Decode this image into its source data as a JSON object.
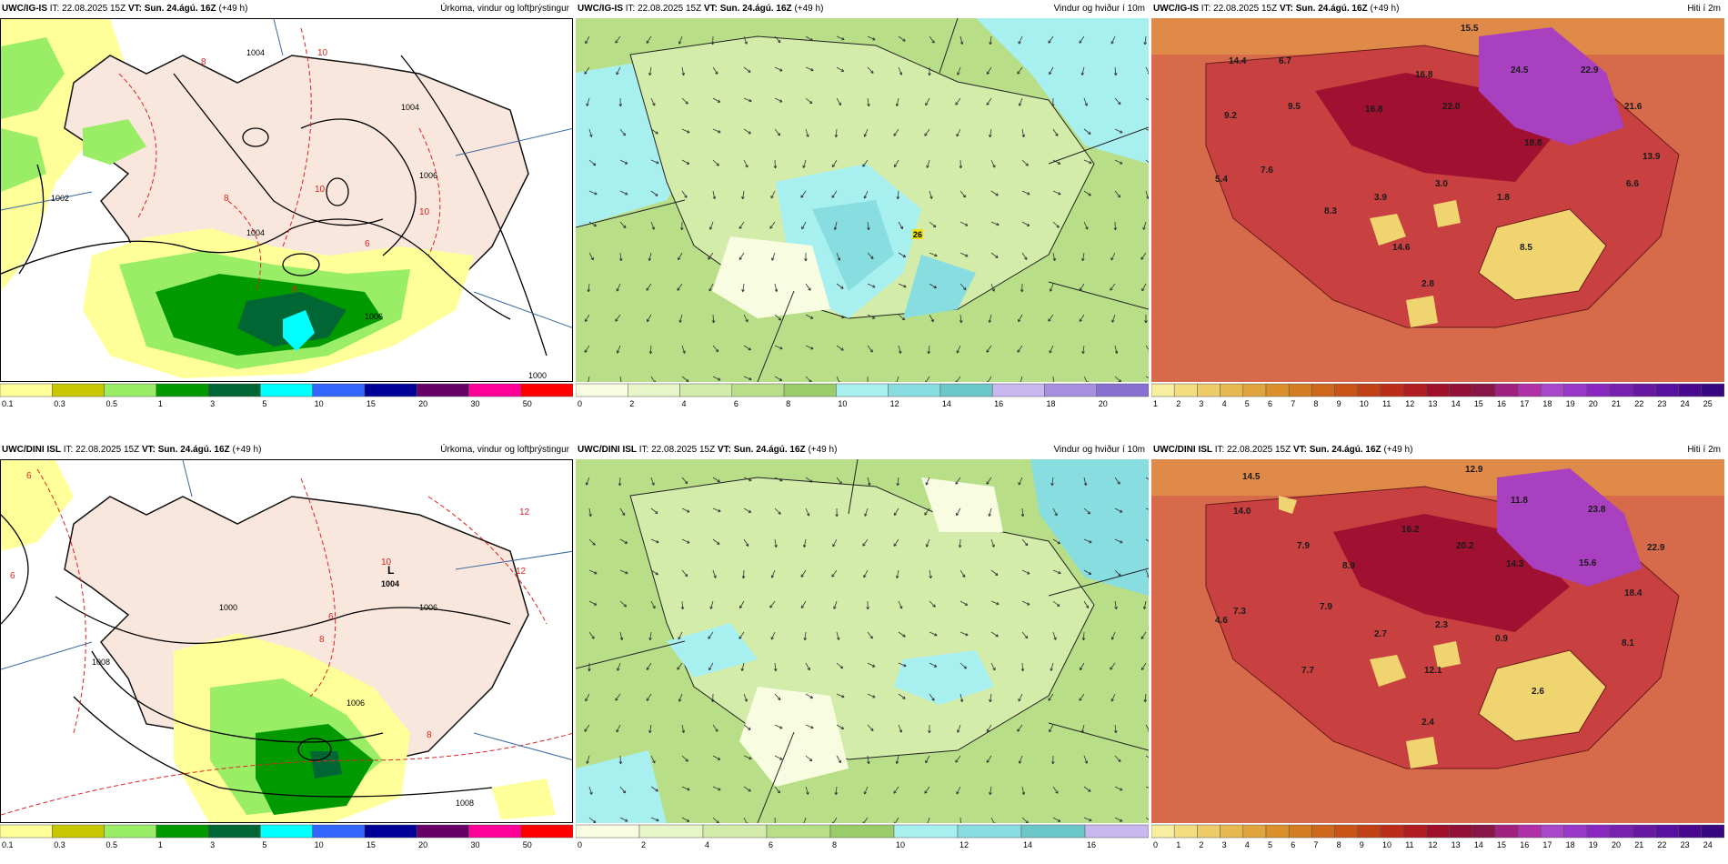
{
  "rows": [
    {
      "model": "UWC/IG-IS",
      "issue_label": "IT:",
      "issue_time": "22.08.2025 15Z",
      "valid_label": "VT:",
      "valid_time": "Sun. 24.ágú. 16Z",
      "lead": "(+49 h)",
      "panels": [
        {
          "kind": "precip",
          "title": "Úrkoma, vindur og loftþrýstingur",
          "scale_labels": [
            "0.1",
            "0.3",
            "0.5",
            "1",
            "3",
            "5",
            "10",
            "15",
            "20",
            "30",
            "50"
          ],
          "scale_colors": [
            "#ffff99",
            "#c8c800",
            "#99ee66",
            "#009900",
            "#006633",
            "#00ffff",
            "#3366ff",
            "#000099",
            "#660066",
            "#ff0099",
            "#ff0000"
          ],
          "isobars": [
            "1004",
            "1004",
            "1006",
            "1004",
            "1002",
            "1006",
            "1000"
          ],
          "temp_labels": [
            "10",
            "8",
            "10",
            "8",
            "10",
            "8",
            "6"
          ]
        },
        {
          "kind": "wind",
          "title": "Vindur og hviður í 10m",
          "scale_labels": [
            "0",
            "2",
            "4",
            "6",
            "8",
            "10",
            "12",
            "14",
            "16",
            "18",
            "20"
          ],
          "scale_colors": [
            "#f8fce0",
            "#e8f5c8",
            "#d4ecaa",
            "#b8df88",
            "#9acd6a",
            "#a8f0f0",
            "#88dde0",
            "#6cc8c8",
            "#c8b8f0",
            "#a890e0",
            "#8870d0"
          ],
          "highlight": "26"
        },
        {
          "kind": "temp",
          "title": "Hiti í 2m",
          "scale_labels": [
            "1",
            "2",
            "3",
            "4",
            "5",
            "6",
            "7",
            "8",
            "9",
            "10",
            "11",
            "12",
            "13",
            "14",
            "15",
            "16",
            "17",
            "18",
            "19",
            "20",
            "21",
            "22",
            "23",
            "24",
            "25"
          ],
          "values": [
            "15.5",
            "14.4",
            "6.7",
            "9.2",
            "9.5",
            "16.8",
            "16.8",
            "22.0",
            "24.5",
            "22.9",
            "21.6",
            "18.8",
            "13.9",
            "5.4",
            "7.6",
            "3.9",
            "3.0",
            "1.8",
            "6.6",
            "8.3",
            "14.6",
            "8.5",
            "2.8"
          ]
        }
      ]
    },
    {
      "model": "UWC/DINI ISL",
      "issue_label": "IT:",
      "issue_time": "22.08.2025 15Z",
      "valid_label": "VT:",
      "valid_time": "Sun. 24.ágú. 16Z",
      "lead": "(+49 h)",
      "panels": [
        {
          "kind": "precip",
          "title": "Úrkoma, vindur og loftþrýstingur",
          "scale_labels": [
            "0.1",
            "0.3",
            "0.5",
            "1",
            "3",
            "5",
            "10",
            "15",
            "20",
            "30",
            "50"
          ],
          "scale_colors": [
            "#ffff99",
            "#c8c800",
            "#99ee66",
            "#009900",
            "#006633",
            "#00ffff",
            "#3366ff",
            "#000099",
            "#660066",
            "#ff0099",
            "#ff0000"
          ],
          "low_label": "L",
          "low_value": "1004",
          "isobars": [
            "1006",
            "1008",
            "1000",
            "1006",
            "1008"
          ],
          "temp_labels": [
            "6",
            "12",
            "10",
            "8",
            "6",
            "8",
            "6",
            "12"
          ]
        },
        {
          "kind": "wind",
          "title": "Vindur og hviður í 10m",
          "scale_labels": [
            "0",
            "2",
            "4",
            "6",
            "8",
            "10",
            "12",
            "14",
            "16"
          ],
          "scale_colors": [
            "#f8fce0",
            "#e8f5c8",
            "#d4ecaa",
            "#b8df88",
            "#9acd6a",
            "#a8f0f0",
            "#88dde0",
            "#6cc8c8",
            "#c8b8f0"
          ]
        },
        {
          "kind": "temp",
          "title": "Hiti í 2m",
          "scale_labels": [
            "0",
            "1",
            "2",
            "3",
            "4",
            "5",
            "6",
            "7",
            "8",
            "9",
            "10",
            "11",
            "12",
            "13",
            "14",
            "15",
            "16",
            "17",
            "18",
            "19",
            "20",
            "21",
            "22",
            "23",
            "24"
          ],
          "values": [
            "12.9",
            "14.5",
            "14.0",
            "11.8",
            "23.8",
            "7.9",
            "16.2",
            "20.2",
            "14.3",
            "15.6",
            "22.9",
            "8.9",
            "18.4",
            "7.3",
            "7.9",
            "4.6",
            "2.7",
            "2.3",
            "0.9",
            "8.1",
            "7.7",
            "12.1",
            "2.6",
            "2.4"
          ]
        }
      ]
    }
  ],
  "temp_scale_colors": [
    "#f8eea0",
    "#f2dd80",
    "#eccb68",
    "#e6b850",
    "#e0a43c",
    "#da902c",
    "#d47c22",
    "#ce681c",
    "#c85418",
    "#c24016",
    "#bc2c18",
    "#b01c20",
    "#a0102a",
    "#901038",
    "#881548",
    "#a02080",
    "#b030a8",
    "#a848c8",
    "#9838c8",
    "#8828c0",
    "#7820b0",
    "#6818a0",
    "#5810a0",
    "#480890",
    "#380880"
  ]
}
